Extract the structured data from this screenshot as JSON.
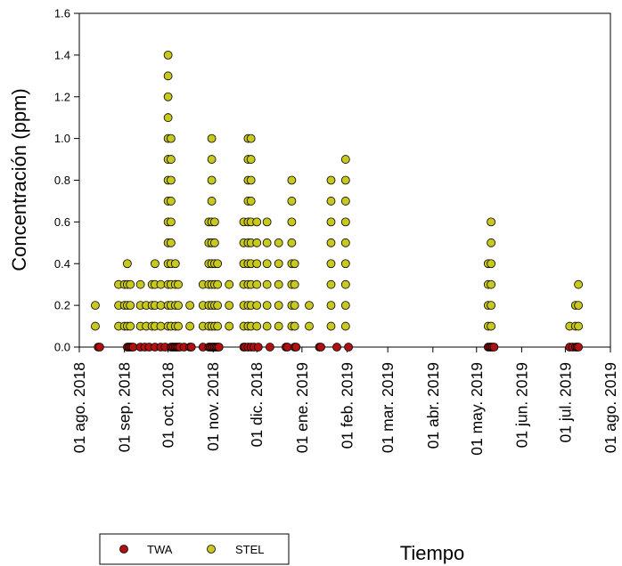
{
  "chart_data": {
    "type": "scatter",
    "title": "",
    "xlabel": "Tiempo",
    "ylabel": "Concentración (ppm)",
    "ylim": [
      0,
      1.6
    ],
    "yticks": [
      "0.0",
      "0.2",
      "0.4",
      "0.6",
      "0.8",
      "1.0",
      "1.2",
      "1.4",
      "1.6"
    ],
    "xlim": [
      "2018-08-01",
      "2019-08-01"
    ],
    "xticks": [
      {
        "date": "2018-08-01",
        "label": "01 ago. 2018"
      },
      {
        "date": "2018-09-01",
        "label": "01 sep. 2018"
      },
      {
        "date": "2018-10-01",
        "label": "01 oct. 2018"
      },
      {
        "date": "2018-11-01",
        "label": "01 nov. 2018"
      },
      {
        "date": "2018-12-01",
        "label": "01 dic. 2018"
      },
      {
        "date": "2019-01-01",
        "label": "01 ene. 2019"
      },
      {
        "date": "2019-02-01",
        "label": "01 feb. 2019"
      },
      {
        "date": "2019-03-01",
        "label": "01 mar. 2019"
      },
      {
        "date": "2019-04-01",
        "label": "01 abr. 2019"
      },
      {
        "date": "2019-05-01",
        "label": "01 may. 2019"
      },
      {
        "date": "2019-06-01",
        "label": "01 jun. 2019"
      },
      {
        "date": "2019-07-01",
        "label": "01 jul. 2019"
      },
      {
        "date": "2019-08-01",
        "label": "01 ago. 2019"
      }
    ],
    "grid": false,
    "legend_position": "bottom-left",
    "series": [
      {
        "name": "TWA",
        "color": "#b01010",
        "points": [
          [
            "2018-08-14",
            0
          ],
          [
            "2018-08-15",
            0
          ],
          [
            "2018-09-03",
            0
          ],
          [
            "2018-09-04",
            0
          ],
          [
            "2018-09-05",
            0
          ],
          [
            "2018-09-06",
            0
          ],
          [
            "2018-09-07",
            0
          ],
          [
            "2018-09-12",
            0
          ],
          [
            "2018-09-15",
            0
          ],
          [
            "2018-09-18",
            0
          ],
          [
            "2018-09-22",
            0
          ],
          [
            "2018-09-26",
            0
          ],
          [
            "2018-09-29",
            0
          ],
          [
            "2018-10-03",
            0
          ],
          [
            "2018-10-04",
            0
          ],
          [
            "2018-10-05",
            0
          ],
          [
            "2018-10-06",
            0
          ],
          [
            "2018-10-07",
            0
          ],
          [
            "2018-10-08",
            0
          ],
          [
            "2018-10-09",
            0
          ],
          [
            "2018-10-12",
            0
          ],
          [
            "2018-10-16",
            0
          ],
          [
            "2018-10-17",
            0
          ],
          [
            "2018-10-25",
            0
          ],
          [
            "2018-10-29",
            0
          ],
          [
            "2018-10-30",
            0
          ],
          [
            "2018-10-31",
            0
          ],
          [
            "2018-11-01",
            0
          ],
          [
            "2018-11-02",
            0
          ],
          [
            "2018-11-03",
            0
          ],
          [
            "2018-11-04",
            0
          ],
          [
            "2018-11-05",
            0
          ],
          [
            "2018-11-22",
            0
          ],
          [
            "2018-11-23",
            0
          ],
          [
            "2018-11-25",
            0
          ],
          [
            "2018-11-27",
            0
          ],
          [
            "2018-11-29",
            0
          ],
          [
            "2018-12-02",
            0
          ],
          [
            "2018-12-10",
            0
          ],
          [
            "2018-12-21",
            0
          ],
          [
            "2018-12-22",
            0
          ],
          [
            "2018-12-27",
            0
          ],
          [
            "2018-12-28",
            0
          ],
          [
            "2019-01-13",
            0
          ],
          [
            "2019-01-14",
            0
          ],
          [
            "2019-01-25",
            0
          ],
          [
            "2019-02-02",
            0
          ],
          [
            "2019-05-09",
            0
          ],
          [
            "2019-05-10",
            0
          ],
          [
            "2019-05-11",
            0
          ],
          [
            "2019-05-12",
            0
          ],
          [
            "2019-05-13",
            0
          ],
          [
            "2019-07-04",
            0
          ],
          [
            "2019-07-06",
            0
          ],
          [
            "2019-07-08",
            0
          ],
          [
            "2019-07-09",
            0
          ],
          [
            "2019-07-10",
            0
          ]
        ]
      },
      {
        "name": "STEL",
        "color": "#c8c81e",
        "points": [
          [
            "2018-08-12",
            0.1
          ],
          [
            "2018-08-12",
            0.2
          ],
          [
            "2018-08-28",
            0.1
          ],
          [
            "2018-08-28",
            0.2
          ],
          [
            "2018-08-28",
            0.3
          ],
          [
            "2018-09-01",
            0.1
          ],
          [
            "2018-09-01",
            0.2
          ],
          [
            "2018-09-01",
            0.3
          ],
          [
            "2018-09-03",
            0.1
          ],
          [
            "2018-09-03",
            0.2
          ],
          [
            "2018-09-03",
            0.3
          ],
          [
            "2018-09-03",
            0.4
          ],
          [
            "2018-09-05",
            0.1
          ],
          [
            "2018-09-05",
            0.2
          ],
          [
            "2018-09-05",
            0.3
          ],
          [
            "2018-09-12",
            0.1
          ],
          [
            "2018-09-12",
            0.2
          ],
          [
            "2018-09-12",
            0.3
          ],
          [
            "2018-09-16",
            0.1
          ],
          [
            "2018-09-16",
            0.2
          ],
          [
            "2018-09-20",
            0.1
          ],
          [
            "2018-09-20",
            0.2
          ],
          [
            "2018-09-20",
            0.3
          ],
          [
            "2018-09-22",
            0.1
          ],
          [
            "2018-09-22",
            0.2
          ],
          [
            "2018-09-22",
            0.3
          ],
          [
            "2018-09-22",
            0.4
          ],
          [
            "2018-09-26",
            0.1
          ],
          [
            "2018-09-26",
            0.2
          ],
          [
            "2018-09-26",
            0.3
          ],
          [
            "2018-10-01",
            0.1
          ],
          [
            "2018-10-01",
            0.2
          ],
          [
            "2018-10-01",
            0.3
          ],
          [
            "2018-10-01",
            0.4
          ],
          [
            "2018-10-01",
            0.5
          ],
          [
            "2018-10-01",
            0.6
          ],
          [
            "2018-10-01",
            0.7
          ],
          [
            "2018-10-01",
            0.8
          ],
          [
            "2018-10-01",
            0.9
          ],
          [
            "2018-10-01",
            1.0
          ],
          [
            "2018-10-01",
            1.1
          ],
          [
            "2018-10-01",
            1.2
          ],
          [
            "2018-10-01",
            1.3
          ],
          [
            "2018-10-01",
            1.4
          ],
          [
            "2018-10-03",
            0.1
          ],
          [
            "2018-10-03",
            0.2
          ],
          [
            "2018-10-03",
            0.3
          ],
          [
            "2018-10-03",
            0.4
          ],
          [
            "2018-10-03",
            0.5
          ],
          [
            "2018-10-03",
            0.6
          ],
          [
            "2018-10-03",
            0.7
          ],
          [
            "2018-10-03",
            0.8
          ],
          [
            "2018-10-03",
            0.9
          ],
          [
            "2018-10-03",
            1.0
          ],
          [
            "2018-10-06",
            0.1
          ],
          [
            "2018-10-06",
            0.2
          ],
          [
            "2018-10-06",
            0.3
          ],
          [
            "2018-10-06",
            0.4
          ],
          [
            "2018-10-08",
            0.1
          ],
          [
            "2018-10-08",
            0.2
          ],
          [
            "2018-10-08",
            0.3
          ],
          [
            "2018-10-16",
            0.1
          ],
          [
            "2018-10-16",
            0.2
          ],
          [
            "2018-10-25",
            0.1
          ],
          [
            "2018-10-25",
            0.2
          ],
          [
            "2018-10-25",
            0.3
          ],
          [
            "2018-10-29",
            0.1
          ],
          [
            "2018-10-29",
            0.2
          ],
          [
            "2018-10-29",
            0.3
          ],
          [
            "2018-10-29",
            0.4
          ],
          [
            "2018-10-29",
            0.5
          ],
          [
            "2018-10-29",
            0.6
          ],
          [
            "2018-10-31",
            0.1
          ],
          [
            "2018-10-31",
            0.2
          ],
          [
            "2018-10-31",
            0.3
          ],
          [
            "2018-10-31",
            0.4
          ],
          [
            "2018-10-31",
            0.5
          ],
          [
            "2018-10-31",
            0.6
          ],
          [
            "2018-10-31",
            0.7
          ],
          [
            "2018-10-31",
            0.8
          ],
          [
            "2018-10-31",
            0.9
          ],
          [
            "2018-10-31",
            1.0
          ],
          [
            "2018-11-02",
            0.1
          ],
          [
            "2018-11-02",
            0.2
          ],
          [
            "2018-11-02",
            0.3
          ],
          [
            "2018-11-02",
            0.4
          ],
          [
            "2018-11-02",
            0.5
          ],
          [
            "2018-11-02",
            0.6
          ],
          [
            "2018-11-04",
            0.1
          ],
          [
            "2018-11-04",
            0.2
          ],
          [
            "2018-11-04",
            0.3
          ],
          [
            "2018-11-04",
            0.4
          ],
          [
            "2018-11-12",
            0.1
          ],
          [
            "2018-11-12",
            0.2
          ],
          [
            "2018-11-12",
            0.3
          ],
          [
            "2018-11-22",
            0.1
          ],
          [
            "2018-11-22",
            0.2
          ],
          [
            "2018-11-22",
            0.3
          ],
          [
            "2018-11-22",
            0.4
          ],
          [
            "2018-11-22",
            0.5
          ],
          [
            "2018-11-22",
            0.6
          ],
          [
            "2018-11-25",
            0.1
          ],
          [
            "2018-11-25",
            0.2
          ],
          [
            "2018-11-25",
            0.3
          ],
          [
            "2018-11-25",
            0.4
          ],
          [
            "2018-11-25",
            0.5
          ],
          [
            "2018-11-25",
            0.6
          ],
          [
            "2018-11-25",
            0.7
          ],
          [
            "2018-11-25",
            0.8
          ],
          [
            "2018-11-25",
            0.9
          ],
          [
            "2018-11-25",
            1.0
          ],
          [
            "2018-11-27",
            0.1
          ],
          [
            "2018-11-27",
            0.2
          ],
          [
            "2018-11-27",
            0.3
          ],
          [
            "2018-11-27",
            0.4
          ],
          [
            "2018-11-27",
            0.5
          ],
          [
            "2018-11-27",
            0.6
          ],
          [
            "2018-11-27",
            0.7
          ],
          [
            "2018-11-27",
            0.8
          ],
          [
            "2018-11-27",
            0.9
          ],
          [
            "2018-11-27",
            1.0
          ],
          [
            "2018-12-01",
            0.1
          ],
          [
            "2018-12-01",
            0.2
          ],
          [
            "2018-12-01",
            0.3
          ],
          [
            "2018-12-01",
            0.4
          ],
          [
            "2018-12-01",
            0.5
          ],
          [
            "2018-12-01",
            0.6
          ],
          [
            "2018-12-08",
            0.1
          ],
          [
            "2018-12-08",
            0.2
          ],
          [
            "2018-12-08",
            0.3
          ],
          [
            "2018-12-08",
            0.4
          ],
          [
            "2018-12-08",
            0.5
          ],
          [
            "2018-12-08",
            0.6
          ],
          [
            "2018-12-16",
            0.1
          ],
          [
            "2018-12-16",
            0.2
          ],
          [
            "2018-12-16",
            0.3
          ],
          [
            "2018-12-16",
            0.4
          ],
          [
            "2018-12-16",
            0.5
          ],
          [
            "2018-12-25",
            0.1
          ],
          [
            "2018-12-25",
            0.2
          ],
          [
            "2018-12-25",
            0.3
          ],
          [
            "2018-12-25",
            0.4
          ],
          [
            "2018-12-25",
            0.5
          ],
          [
            "2018-12-25",
            0.6
          ],
          [
            "2018-12-25",
            0.7
          ],
          [
            "2018-12-25",
            0.8
          ],
          [
            "2018-12-27",
            0.1
          ],
          [
            "2018-12-27",
            0.2
          ],
          [
            "2018-12-27",
            0.3
          ],
          [
            "2018-12-27",
            0.4
          ],
          [
            "2019-01-06",
            0.1
          ],
          [
            "2019-01-06",
            0.2
          ],
          [
            "2019-01-21",
            0.1
          ],
          [
            "2019-01-21",
            0.2
          ],
          [
            "2019-01-21",
            0.3
          ],
          [
            "2019-01-21",
            0.4
          ],
          [
            "2019-01-21",
            0.5
          ],
          [
            "2019-01-21",
            0.6
          ],
          [
            "2019-01-21",
            0.7
          ],
          [
            "2019-01-21",
            0.8
          ],
          [
            "2019-01-31",
            0.1
          ],
          [
            "2019-01-31",
            0.2
          ],
          [
            "2019-01-31",
            0.3
          ],
          [
            "2019-01-31",
            0.4
          ],
          [
            "2019-01-31",
            0.5
          ],
          [
            "2019-01-31",
            0.6
          ],
          [
            "2019-01-31",
            0.7
          ],
          [
            "2019-01-31",
            0.8
          ],
          [
            "2019-01-31",
            0.9
          ],
          [
            "2019-05-09",
            0.1
          ],
          [
            "2019-05-09",
            0.2
          ],
          [
            "2019-05-09",
            0.3
          ],
          [
            "2019-05-09",
            0.4
          ],
          [
            "2019-05-11",
            0.1
          ],
          [
            "2019-05-11",
            0.2
          ],
          [
            "2019-05-11",
            0.3
          ],
          [
            "2019-05-11",
            0.4
          ],
          [
            "2019-05-11",
            0.5
          ],
          [
            "2019-05-11",
            0.6
          ],
          [
            "2019-07-04",
            0.1
          ],
          [
            "2019-07-08",
            0.1
          ],
          [
            "2019-07-08",
            0.2
          ],
          [
            "2019-07-10",
            0.1
          ],
          [
            "2019-07-10",
            0.2
          ],
          [
            "2019-07-10",
            0.3
          ]
        ]
      }
    ]
  }
}
